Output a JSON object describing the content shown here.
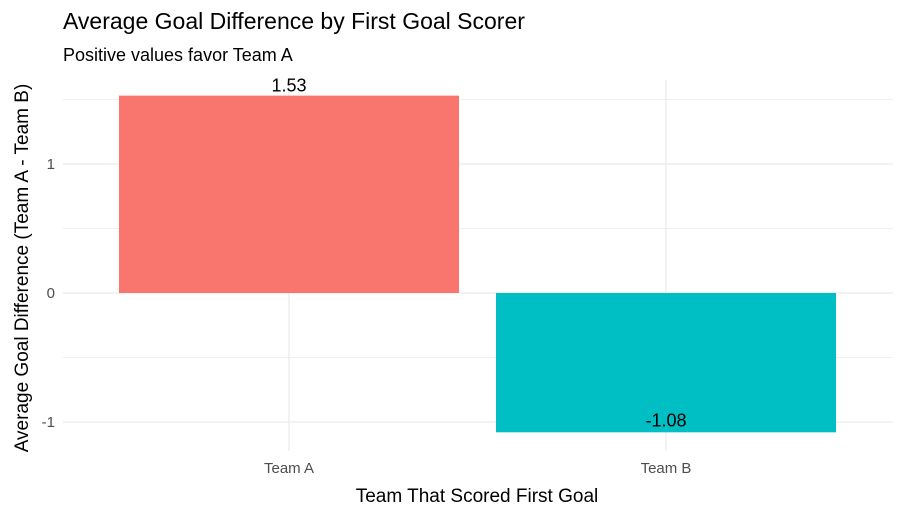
{
  "chart_data": {
    "type": "bar",
    "title": "Average Goal Difference by First Goal Scorer",
    "subtitle": "Positive values favor Team A",
    "xlabel": "Team That Scored First Goal",
    "ylabel": "Average Goal Difference (Team A - Team B)",
    "categories": [
      "Team A",
      "Team B"
    ],
    "values": [
      1.53,
      -1.08
    ],
    "data_labels": [
      "1.53",
      "-1.08"
    ],
    "colors": [
      "#F8766D",
      "#00BFC4"
    ],
    "yticks": [
      -1,
      0,
      1
    ],
    "ytick_labels": [
      "-1",
      "0",
      "1"
    ],
    "ylim": [
      -1.08,
      1.53
    ],
    "grid": true,
    "legend": "none"
  }
}
